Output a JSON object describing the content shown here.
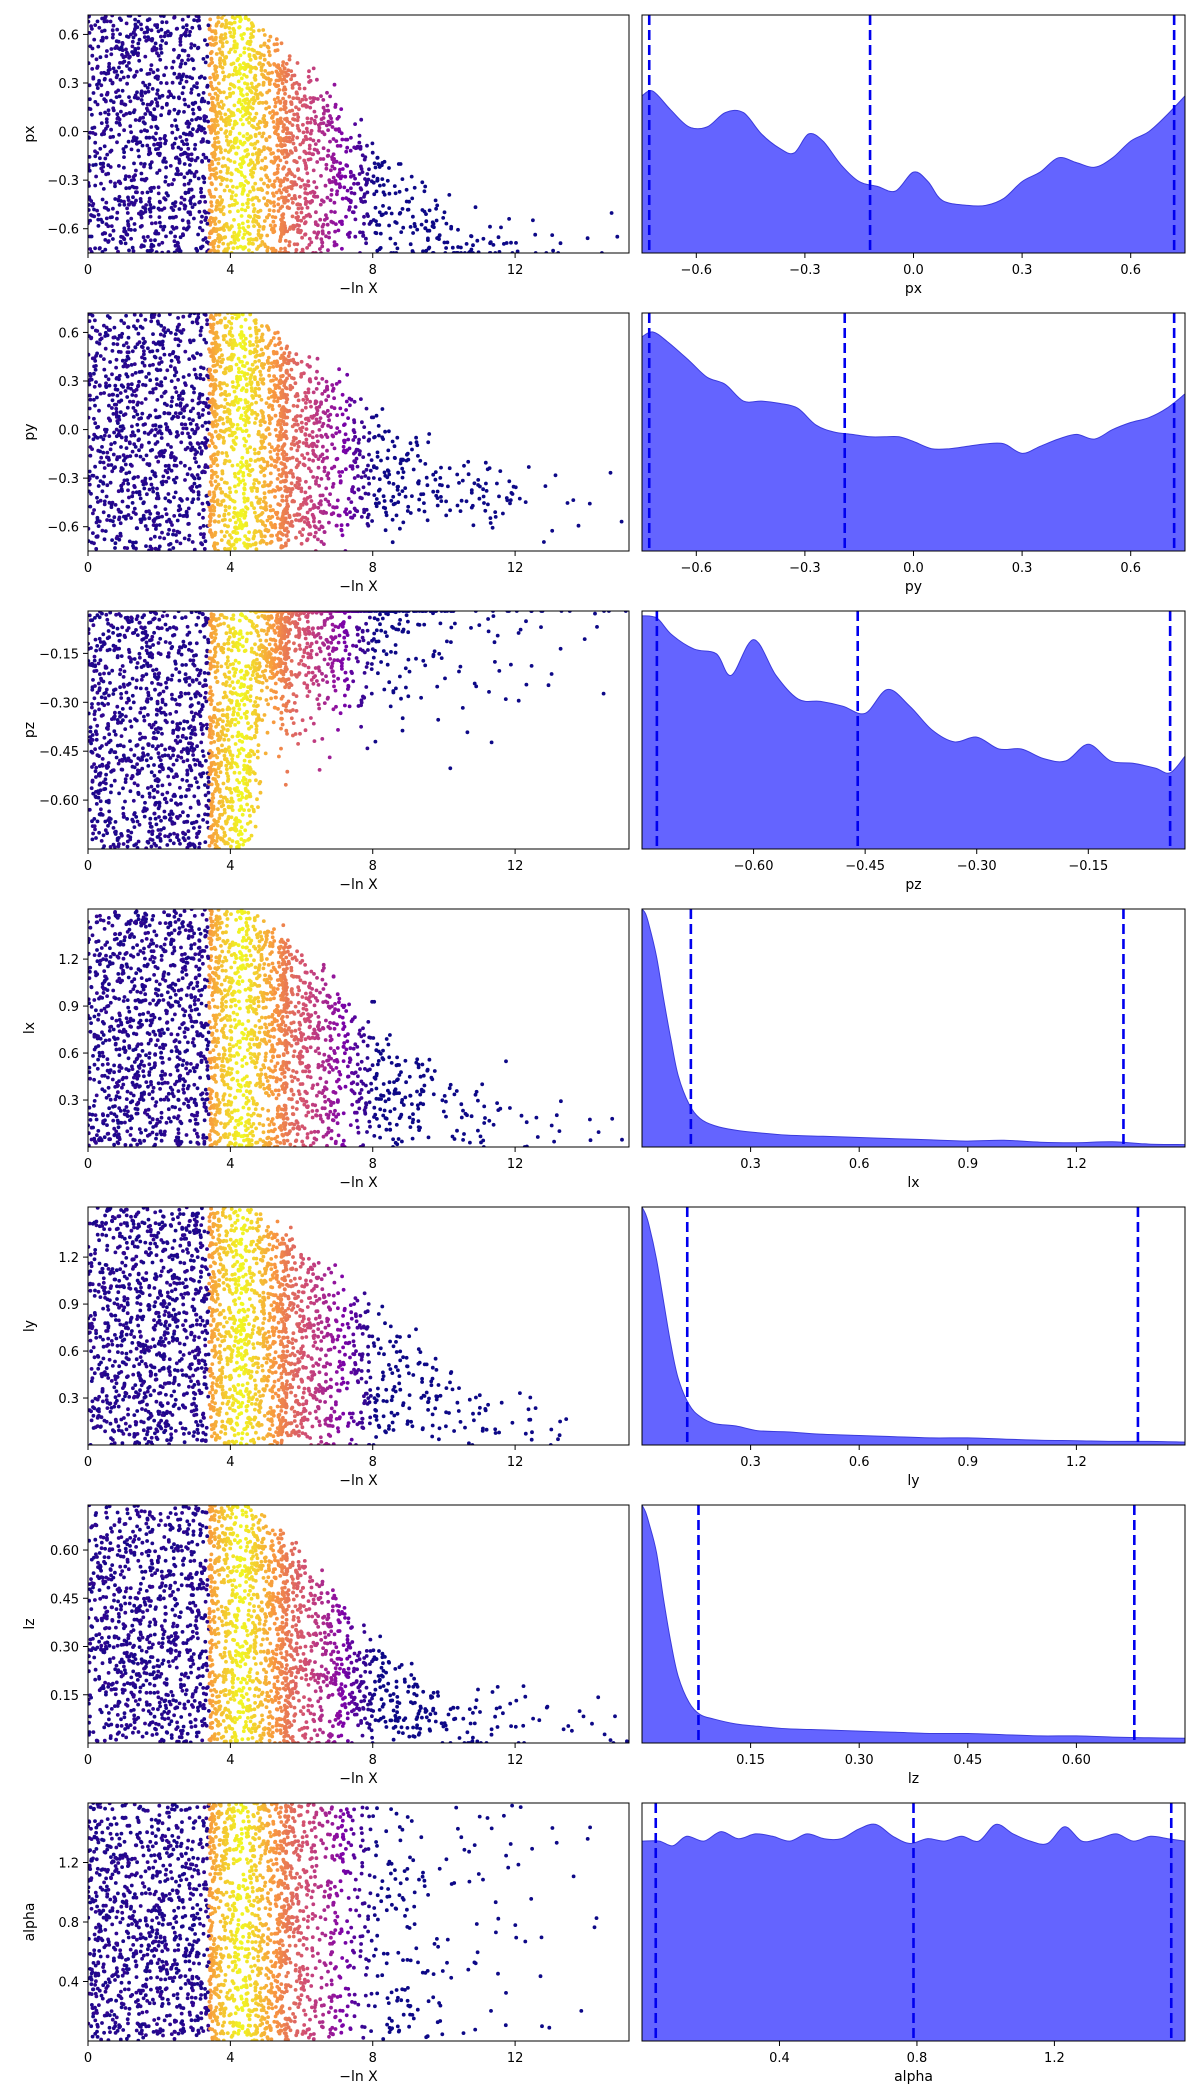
{
  "trace_xlabel": "−ln X",
  "colors": {
    "marginal_fill": "#6464ff",
    "marginal_edge": "#3b3bdc",
    "quantile_line": "#0000ee",
    "trace_colormap": "plasma",
    "axis": "#000000"
  },
  "chart_data": [
    {
      "type": "scatter",
      "name": "trace-px",
      "ylabel": "px",
      "xlim": [
        0,
        15.2
      ],
      "ylim": [
        -0.75,
        0.72
      ],
      "xticks": [
        0,
        4,
        8,
        12
      ],
      "yticks": [
        -0.6,
        -0.3,
        0.0,
        0.3,
        0.6
      ],
      "ytick_labels": [
        "−0.6",
        "−0.3",
        "0.0",
        "0.3",
        "0.6"
      ],
      "tail": "low",
      "tail_bias": 0.66,
      "shrink_ref": [
        -0.72,
        0.35,
        8.5
      ]
    },
    {
      "type": "area",
      "name": "marginal-px",
      "xlabel": "px",
      "xlim": [
        -0.75,
        0.75
      ],
      "xticks": [
        -0.6,
        -0.3,
        0.0,
        0.3,
        0.6
      ],
      "xtick_labels": [
        "−0.6",
        "−0.3",
        "0.0",
        "0.3",
        "0.6"
      ],
      "quantiles": [
        -0.73,
        -0.12,
        0.72
      ],
      "density": [
        [
          -0.75,
          0.66
        ],
        [
          -0.72,
          0.68
        ],
        [
          -0.67,
          0.6
        ],
        [
          -0.62,
          0.53
        ],
        [
          -0.57,
          0.53
        ],
        [
          -0.52,
          0.59
        ],
        [
          -0.47,
          0.59
        ],
        [
          -0.42,
          0.5
        ],
        [
          -0.37,
          0.44
        ],
        [
          -0.33,
          0.42
        ],
        [
          -0.29,
          0.5
        ],
        [
          -0.25,
          0.47
        ],
        [
          -0.2,
          0.37
        ],
        [
          -0.15,
          0.3
        ],
        [
          -0.1,
          0.28
        ],
        [
          -0.05,
          0.26
        ],
        [
          0.0,
          0.34
        ],
        [
          0.04,
          0.3
        ],
        [
          0.08,
          0.22
        ],
        [
          0.15,
          0.2
        ],
        [
          0.2,
          0.2
        ],
        [
          0.25,
          0.23
        ],
        [
          0.3,
          0.3
        ],
        [
          0.35,
          0.34
        ],
        [
          0.4,
          0.4
        ],
        [
          0.45,
          0.38
        ],
        [
          0.5,
          0.36
        ],
        [
          0.55,
          0.4
        ],
        [
          0.6,
          0.47
        ],
        [
          0.65,
          0.51
        ],
        [
          0.7,
          0.58
        ],
        [
          0.75,
          0.66
        ]
      ]
    },
    {
      "type": "scatter",
      "name": "trace-py",
      "ylabel": "py",
      "xlim": [
        0,
        15.2
      ],
      "ylim": [
        -0.75,
        0.72
      ],
      "xticks": [
        0,
        4,
        8,
        12
      ],
      "yticks": [
        -0.6,
        -0.3,
        0.0,
        0.3,
        0.6
      ],
      "ytick_labels": [
        "−0.6",
        "−0.3",
        "0.0",
        "0.3",
        "0.6"
      ],
      "tail": "low",
      "tail_bias": 0.62,
      "shrink_ref": [
        -0.45,
        0.35,
        8.5
      ]
    },
    {
      "type": "area",
      "name": "marginal-py",
      "xlabel": "py",
      "xlim": [
        -0.75,
        0.75
      ],
      "xticks": [
        -0.6,
        -0.3,
        0.0,
        0.3,
        0.6
      ],
      "xtick_labels": [
        "−0.6",
        "−0.3",
        "0.0",
        "0.3",
        "0.6"
      ],
      "quantiles": [
        -0.73,
        -0.19,
        0.72
      ],
      "density": [
        [
          -0.75,
          0.9
        ],
        [
          -0.72,
          0.92
        ],
        [
          -0.68,
          0.88
        ],
        [
          -0.62,
          0.8
        ],
        [
          -0.57,
          0.73
        ],
        [
          -0.52,
          0.7
        ],
        [
          -0.47,
          0.63
        ],
        [
          -0.42,
          0.63
        ],
        [
          -0.37,
          0.62
        ],
        [
          -0.32,
          0.6
        ],
        [
          -0.27,
          0.53
        ],
        [
          -0.22,
          0.5
        ],
        [
          -0.17,
          0.49
        ],
        [
          -0.12,
          0.48
        ],
        [
          -0.08,
          0.48
        ],
        [
          -0.04,
          0.48
        ],
        [
          0.0,
          0.46
        ],
        [
          0.05,
          0.43
        ],
        [
          0.1,
          0.43
        ],
        [
          0.15,
          0.44
        ],
        [
          0.2,
          0.45
        ],
        [
          0.25,
          0.45
        ],
        [
          0.3,
          0.41
        ],
        [
          0.35,
          0.44
        ],
        [
          0.4,
          0.47
        ],
        [
          0.45,
          0.49
        ],
        [
          0.5,
          0.47
        ],
        [
          0.55,
          0.51
        ],
        [
          0.6,
          0.54
        ],
        [
          0.65,
          0.56
        ],
        [
          0.7,
          0.6
        ],
        [
          0.75,
          0.66
        ]
      ]
    },
    {
      "type": "scatter",
      "name": "trace-pz",
      "ylabel": "pz",
      "xlim": [
        0,
        15.2
      ],
      "ylim": [
        -0.75,
        -0.02
      ],
      "xticks": [
        0,
        4,
        8,
        12
      ],
      "yticks": [
        -0.6,
        -0.45,
        -0.3,
        -0.15
      ],
      "ytick_labels": [
        "−0.60",
        "−0.45",
        "−0.30",
        "−0.15"
      ],
      "tail": "high",
      "tail_bias": 0.8,
      "shrink_ref": [
        -0.05,
        0.55,
        5.0
      ]
    },
    {
      "type": "area",
      "name": "marginal-pz",
      "xlabel": "pz",
      "xlim": [
        -0.75,
        -0.02
      ],
      "xticks": [
        -0.6,
        -0.45,
        -0.3,
        -0.15
      ],
      "xtick_labels": [
        "−0.60",
        "−0.45",
        "−0.30",
        "−0.15"
      ],
      "quantiles": [
        -0.73,
        -0.46,
        -0.04
      ],
      "density": [
        [
          -0.75,
          0.98
        ],
        [
          -0.73,
          0.97
        ],
        [
          -0.71,
          0.9
        ],
        [
          -0.68,
          0.84
        ],
        [
          -0.65,
          0.82
        ],
        [
          -0.63,
          0.73
        ],
        [
          -0.6,
          0.88
        ],
        [
          -0.57,
          0.73
        ],
        [
          -0.54,
          0.63
        ],
        [
          -0.51,
          0.62
        ],
        [
          -0.48,
          0.6
        ],
        [
          -0.45,
          0.57
        ],
        [
          -0.42,
          0.67
        ],
        [
          -0.39,
          0.6
        ],
        [
          -0.36,
          0.5
        ],
        [
          -0.33,
          0.45
        ],
        [
          -0.3,
          0.47
        ],
        [
          -0.27,
          0.42
        ],
        [
          -0.24,
          0.42
        ],
        [
          -0.21,
          0.38
        ],
        [
          -0.18,
          0.37
        ],
        [
          -0.15,
          0.44
        ],
        [
          -0.12,
          0.37
        ],
        [
          -0.09,
          0.36
        ],
        [
          -0.06,
          0.34
        ],
        [
          -0.04,
          0.32
        ],
        [
          -0.02,
          0.39
        ]
      ]
    },
    {
      "type": "scatter",
      "name": "trace-lx",
      "ylabel": "lx",
      "xlim": [
        0,
        15.2
      ],
      "ylim": [
        0,
        1.52
      ],
      "xticks": [
        0,
        4,
        8,
        12
      ],
      "yticks": [
        0.3,
        0.6,
        0.9,
        1.2
      ],
      "ytick_labels": [
        "0.3",
        "0.6",
        "0.9",
        "1.2"
      ],
      "tail": "low",
      "tail_bias": 0.65,
      "shrink_ref": [
        0.1,
        0.4,
        9.0
      ]
    },
    {
      "type": "area",
      "name": "marginal-lx",
      "xlabel": "lx",
      "xlim": [
        0,
        1.5
      ],
      "xticks": [
        0.3,
        0.6,
        0.9,
        1.2
      ],
      "xtick_labels": [
        "0.3",
        "0.6",
        "0.9",
        "1.2"
      ],
      "quantiles": [
        0.135,
        1.33
      ],
      "density": [
        [
          0,
          1.0
        ],
        [
          0.01,
          0.98
        ],
        [
          0.02,
          0.93
        ],
        [
          0.04,
          0.8
        ],
        [
          0.06,
          0.62
        ],
        [
          0.08,
          0.45
        ],
        [
          0.1,
          0.3
        ],
        [
          0.13,
          0.18
        ],
        [
          0.16,
          0.12
        ],
        [
          0.2,
          0.09
        ],
        [
          0.26,
          0.07
        ],
        [
          0.32,
          0.06
        ],
        [
          0.4,
          0.05
        ],
        [
          0.5,
          0.045
        ],
        [
          0.6,
          0.04
        ],
        [
          0.7,
          0.035
        ],
        [
          0.8,
          0.03
        ],
        [
          0.9,
          0.025
        ],
        [
          1.0,
          0.028
        ],
        [
          1.1,
          0.02
        ],
        [
          1.2,
          0.018
        ],
        [
          1.3,
          0.022
        ],
        [
          1.4,
          0.012
        ],
        [
          1.5,
          0.01
        ]
      ]
    },
    {
      "type": "scatter",
      "name": "trace-ly",
      "ylabel": "ly",
      "xlim": [
        0,
        15.2
      ],
      "ylim": [
        0,
        1.52
      ],
      "xticks": [
        0,
        4,
        8,
        12
      ],
      "yticks": [
        0.3,
        0.6,
        0.9,
        1.2
      ],
      "ytick_labels": [
        "0.3",
        "0.6",
        "0.9",
        "1.2"
      ],
      "tail": "low",
      "tail_bias": 0.6,
      "shrink_ref": [
        0.1,
        0.4,
        9.0
      ]
    },
    {
      "type": "area",
      "name": "marginal-ly",
      "xlabel": "ly",
      "xlim": [
        0,
        1.5
      ],
      "xticks": [
        0.3,
        0.6,
        0.9,
        1.2
      ],
      "xtick_labels": [
        "0.3",
        "0.6",
        "0.9",
        "1.2"
      ],
      "quantiles": [
        0.125,
        1.37
      ],
      "density": [
        [
          0,
          1.0
        ],
        [
          0.01,
          0.97
        ],
        [
          0.02,
          0.92
        ],
        [
          0.04,
          0.78
        ],
        [
          0.06,
          0.6
        ],
        [
          0.08,
          0.42
        ],
        [
          0.1,
          0.28
        ],
        [
          0.13,
          0.17
        ],
        [
          0.16,
          0.12
        ],
        [
          0.2,
          0.09
        ],
        [
          0.26,
          0.08
        ],
        [
          0.32,
          0.06
        ],
        [
          0.4,
          0.055
        ],
        [
          0.5,
          0.045
        ],
        [
          0.6,
          0.04
        ],
        [
          0.7,
          0.035
        ],
        [
          0.8,
          0.03
        ],
        [
          0.9,
          0.03
        ],
        [
          1.0,
          0.025
        ],
        [
          1.1,
          0.02
        ],
        [
          1.2,
          0.018
        ],
        [
          1.3,
          0.015
        ],
        [
          1.4,
          0.015
        ],
        [
          1.5,
          0.012
        ]
      ]
    },
    {
      "type": "scatter",
      "name": "trace-lz",
      "ylabel": "lz",
      "xlim": [
        0,
        15.2
      ],
      "ylim": [
        0,
        0.74
      ],
      "xticks": [
        0,
        4,
        8,
        12
      ],
      "yticks": [
        0.15,
        0.3,
        0.45,
        0.6
      ],
      "ytick_labels": [
        "0.15",
        "0.30",
        "0.45",
        "0.60"
      ],
      "tail": "low",
      "tail_bias": 0.7,
      "shrink_ref": [
        0.05,
        0.2,
        8.5
      ]
    },
    {
      "type": "area",
      "name": "marginal-lz",
      "xlabel": "lz",
      "xlim": [
        0,
        0.75
      ],
      "xticks": [
        0.15,
        0.3,
        0.45,
        0.6
      ],
      "xtick_labels": [
        "0.15",
        "0.30",
        "0.45",
        "0.60"
      ],
      "quantiles": [
        0.078,
        0.68
      ],
      "density": [
        [
          0,
          1.0
        ],
        [
          0.005,
          0.97
        ],
        [
          0.01,
          0.92
        ],
        [
          0.02,
          0.8
        ],
        [
          0.03,
          0.6
        ],
        [
          0.04,
          0.42
        ],
        [
          0.05,
          0.28
        ],
        [
          0.065,
          0.17
        ],
        [
          0.08,
          0.12
        ],
        [
          0.1,
          0.1
        ],
        [
          0.13,
          0.08
        ],
        [
          0.16,
          0.07
        ],
        [
          0.2,
          0.06
        ],
        [
          0.25,
          0.055
        ],
        [
          0.3,
          0.05
        ],
        [
          0.35,
          0.045
        ],
        [
          0.4,
          0.04
        ],
        [
          0.45,
          0.04
        ],
        [
          0.5,
          0.035
        ],
        [
          0.55,
          0.03
        ],
        [
          0.6,
          0.03
        ],
        [
          0.65,
          0.025
        ],
        [
          0.7,
          0.022
        ],
        [
          0.75,
          0.02
        ]
      ]
    },
    {
      "type": "scatter",
      "name": "trace-alpha",
      "ylabel": "alpha",
      "xlim": [
        0,
        15.2
      ],
      "ylim": [
        0,
        1.6
      ],
      "xticks": [
        0,
        4,
        8,
        12
      ],
      "yticks": [
        0.4,
        0.8,
        1.2
      ],
      "ytick_labels": [
        "0.4",
        "0.8",
        "1.2"
      ],
      "tail": "uniform",
      "tail_bias": 0.5,
      "shrink_ref": [
        0.8,
        0.8,
        9.0
      ]
    },
    {
      "type": "area",
      "name": "marginal-alpha",
      "xlabel": "alpha",
      "xlim": [
        0,
        1.58
      ],
      "xticks": [
        0.4,
        0.8,
        1.2
      ],
      "xtick_labels": [
        "0.4",
        "0.8",
        "1.2"
      ],
      "quantiles": [
        0.04,
        0.79,
        1.54
      ],
      "density": [
        [
          0,
          0.84
        ],
        [
          0.05,
          0.84
        ],
        [
          0.09,
          0.82
        ],
        [
          0.13,
          0.86
        ],
        [
          0.18,
          0.84
        ],
        [
          0.23,
          0.88
        ],
        [
          0.28,
          0.85
        ],
        [
          0.33,
          0.87
        ],
        [
          0.38,
          0.86
        ],
        [
          0.43,
          0.84
        ],
        [
          0.48,
          0.87
        ],
        [
          0.53,
          0.85
        ],
        [
          0.58,
          0.85
        ],
        [
          0.63,
          0.89
        ],
        [
          0.68,
          0.91
        ],
        [
          0.73,
          0.86
        ],
        [
          0.78,
          0.83
        ],
        [
          0.83,
          0.85
        ],
        [
          0.88,
          0.84
        ],
        [
          0.93,
          0.86
        ],
        [
          0.98,
          0.84
        ],
        [
          1.03,
          0.91
        ],
        [
          1.08,
          0.87
        ],
        [
          1.13,
          0.84
        ],
        [
          1.18,
          0.83
        ],
        [
          1.23,
          0.9
        ],
        [
          1.28,
          0.84
        ],
        [
          1.33,
          0.85
        ],
        [
          1.38,
          0.87
        ],
        [
          1.43,
          0.84
        ],
        [
          1.48,
          0.86
        ],
        [
          1.53,
          0.85
        ],
        [
          1.58,
          0.84
        ]
      ]
    }
  ]
}
